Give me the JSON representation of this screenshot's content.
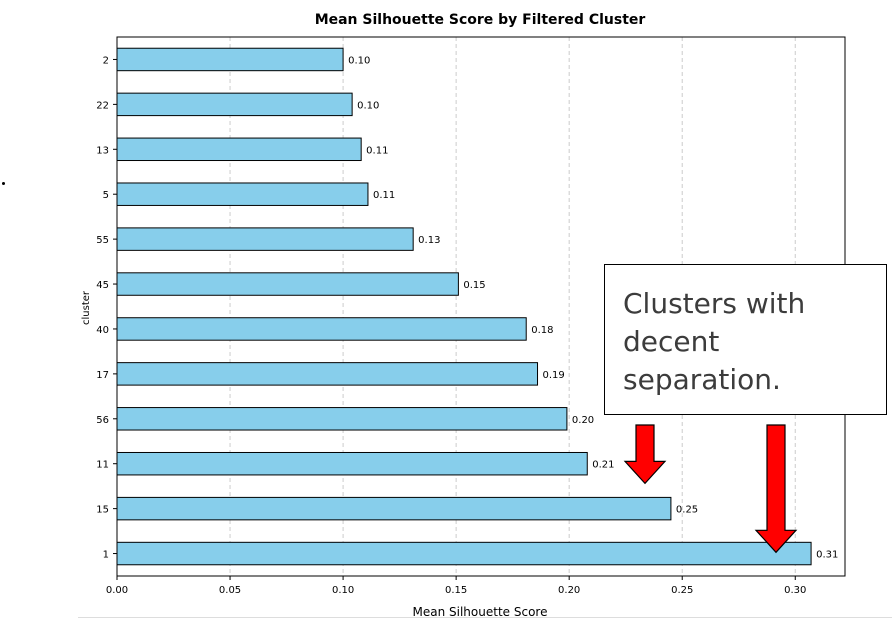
{
  "chart_data": {
    "type": "bar",
    "orientation": "horizontal",
    "title": "Mean Silhouette Score by Filtered Cluster",
    "xlabel": "Mean Silhouette Score",
    "ylabel": "cluster",
    "categories": [
      "2",
      "22",
      "13",
      "5",
      "55",
      "45",
      "40",
      "17",
      "56",
      "11",
      "15",
      "1"
    ],
    "values": [
      0.1,
      0.104,
      0.108,
      0.111,
      0.131,
      0.151,
      0.181,
      0.186,
      0.199,
      0.208,
      0.245,
      0.307
    ],
    "labels": [
      "0.10",
      "0.10",
      "0.11",
      "0.11",
      "0.13",
      "0.15",
      "0.18",
      "0.19",
      "0.20",
      "0.21",
      "0.25",
      "0.31"
    ],
    "xticks": [
      "0.00",
      "0.05",
      "0.10",
      "0.15",
      "0.20",
      "0.25",
      "0.30"
    ],
    "xlim": [
      0,
      0.322
    ],
    "grid": "x",
    "bar_color": "#87ceeb",
    "edge_color": "#000000"
  },
  "annotation": {
    "text_lines": [
      "Clusters with",
      "decent",
      "separation."
    ],
    "arrow_color": "#ff0000",
    "arrow_targets": [
      "15",
      "1"
    ]
  }
}
